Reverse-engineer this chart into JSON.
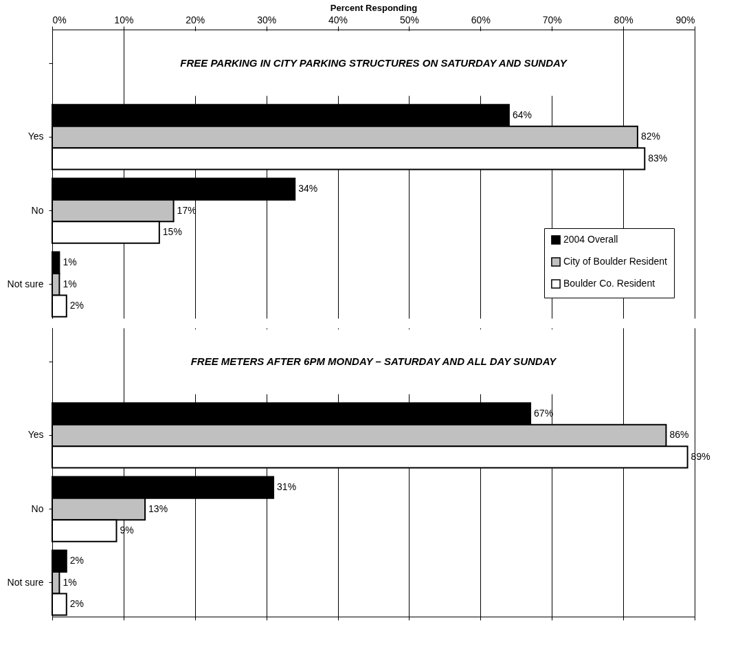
{
  "chart_data": [
    {
      "type": "bar",
      "orientation": "horizontal",
      "title": "FREE PARKING IN CITY PARKING STRUCTURES ON SATURDAY AND SUNDAY",
      "xlabel": "Percent Responding",
      "categories": [
        "Yes",
        "No",
        "Not sure"
      ],
      "series": [
        {
          "name": "2004 Overall",
          "color": "#000000",
          "values": [
            64,
            34,
            1
          ],
          "value_labels": [
            "64%",
            "34%",
            "1%"
          ]
        },
        {
          "name": "City of Boulder Resident",
          "color": "#c0c0c0",
          "values": [
            82,
            17,
            1
          ],
          "value_labels": [
            "82%",
            "17%",
            "1%"
          ]
        },
        {
          "name": "Boulder Co. Resident",
          "color": "#ffffff",
          "values": [
            83,
            15,
            2
          ],
          "value_labels": [
            "83%",
            "15%",
            "2%"
          ]
        }
      ],
      "xlim": [
        0,
        90
      ],
      "xticks": [
        {
          "value": 0,
          "label": "0%"
        },
        {
          "value": 10,
          "label": "10%"
        },
        {
          "value": 20,
          "label": "20%"
        },
        {
          "value": 30,
          "label": "30%"
        },
        {
          "value": 40,
          "label": "40%"
        },
        {
          "value": 50,
          "label": "50%"
        },
        {
          "value": 60,
          "label": "60%"
        },
        {
          "value": 70,
          "label": "70%"
        },
        {
          "value": 80,
          "label": "80%"
        },
        {
          "value": 90,
          "label": "90%"
        }
      ],
      "grid": "x",
      "legend": "bottom right"
    },
    {
      "type": "bar",
      "orientation": "horizontal",
      "title": "FREE METERS AFTER 6PM MONDAY – SATURDAY AND ALL DAY SUNDAY",
      "categories": [
        "Yes",
        "No",
        "Not sure"
      ],
      "series": [
        {
          "color": "#000000",
          "values": [
            67,
            31,
            2
          ],
          "value_labels": [
            "67%",
            "31%",
            "2%"
          ]
        },
        {
          "color": "#c0c0c0",
          "values": [
            86,
            13,
            1
          ],
          "value_labels": [
            "86%",
            "13%",
            "1%"
          ]
        },
        {
          "color": "#ffffff",
          "values": [
            89,
            9,
            2
          ],
          "value_labels": [
            "89%",
            "9%",
            "2%"
          ]
        }
      ],
      "xlim": [
        0,
        90
      ],
      "xticks": [
        0,
        10,
        20,
        30,
        40,
        50,
        60,
        70,
        80,
        90
      ],
      "grid": "x",
      "tick_labels": "y"
    }
  ]
}
